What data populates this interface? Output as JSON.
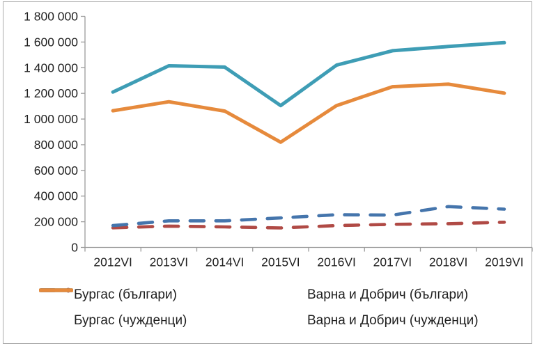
{
  "page": {
    "background": "#FFFFFF",
    "border_color": "#ABABAB"
  },
  "chart_data": {
    "type": "line",
    "title": "",
    "xlabel": "",
    "ylabel": "",
    "grid": false,
    "legend_position": "bottom",
    "axis_color": "#9B9B9B",
    "text_color": "#1F1F1F",
    "ylim": [
      0,
      1800000
    ],
    "y_tick_step": 200000,
    "y_tick_labels": [
      "0",
      "200 000",
      "400 000",
      "600 000",
      "800 000",
      "1 000 000",
      "1 200 000",
      "1 400 000",
      "1 600 000",
      "1 800 000"
    ],
    "categories": [
      "2012VI",
      "2013VI",
      "2014VI",
      "2015VI",
      "2016VI",
      "2017VI",
      "2018VI",
      "2019VI"
    ],
    "series": [
      {
        "name": "Бургас (българи)",
        "style": "dashed",
        "color": "#4575AC",
        "values": [
          170000,
          207000,
          207000,
          230000,
          255000,
          252000,
          318000,
          298000
        ]
      },
      {
        "name": "Варна и Добрич (българи)",
        "style": "dashed",
        "color": "#B04A45",
        "values": [
          153000,
          166000,
          160000,
          152000,
          170000,
          180000,
          185000,
          196000
        ]
      },
      {
        "name": "Бургас (чужденци)",
        "style": "solid",
        "color": "#3E9DB5",
        "values": [
          1210000,
          1415000,
          1405000,
          1105000,
          1420000,
          1532000,
          1565000,
          1595000
        ]
      },
      {
        "name": "Варна и Добрич (чужденци)",
        "style": "solid",
        "color": "#E68A3C",
        "values": [
          1065000,
          1135000,
          1062000,
          820000,
          1105000,
          1252000,
          1272000,
          1202000
        ]
      }
    ]
  }
}
